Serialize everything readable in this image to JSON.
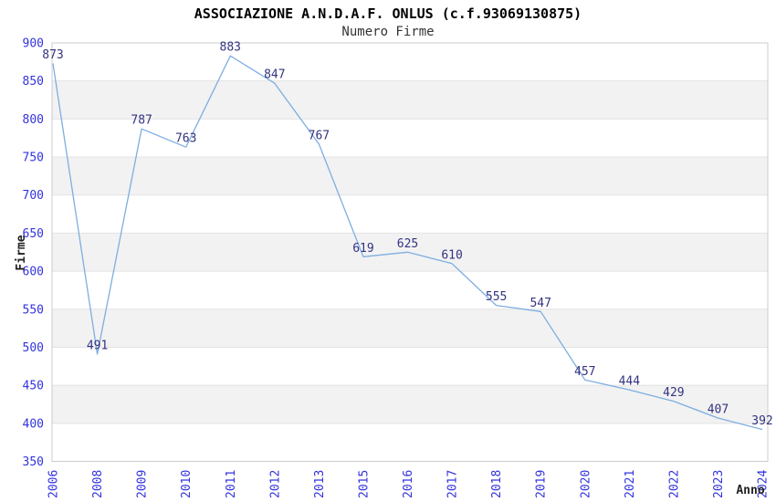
{
  "chart_data": {
    "type": "line",
    "title": "ASSOCIAZIONE A.N.D.A.F. ONLUS (c.f.93069130875)",
    "subtitle": "Numero Firme",
    "xlabel": "Anno",
    "ylabel": "Firme",
    "categories": [
      "2006",
      "2008",
      "2009",
      "2010",
      "2011",
      "2012",
      "2013",
      "2015",
      "2016",
      "2017",
      "2018",
      "2019",
      "2020",
      "2021",
      "2022",
      "2023",
      "2024"
    ],
    "values": [
      873,
      491,
      787,
      763,
      883,
      847,
      767,
      619,
      625,
      610,
      555,
      547,
      457,
      444,
      429,
      407,
      392
    ],
    "ylim": [
      350,
      900
    ],
    "ytick_step": 50,
    "yticks": [
      350,
      400,
      450,
      500,
      550,
      600,
      650,
      700,
      750,
      800,
      850,
      900
    ],
    "grid": "horizontal-with-alternating-bands",
    "legend": "none",
    "point_markers": false,
    "data_labels_position": "above",
    "colors": {
      "line": "#7daee0",
      "tick_label": "#3333dd",
      "data_label": "#333380",
      "band": "#f2f2f2",
      "grid": "#e3e3e3",
      "border": "#cccccc",
      "title": "#000000",
      "subtitle": "#333333",
      "axis_title": "#222222",
      "background": "#ffffff"
    }
  }
}
